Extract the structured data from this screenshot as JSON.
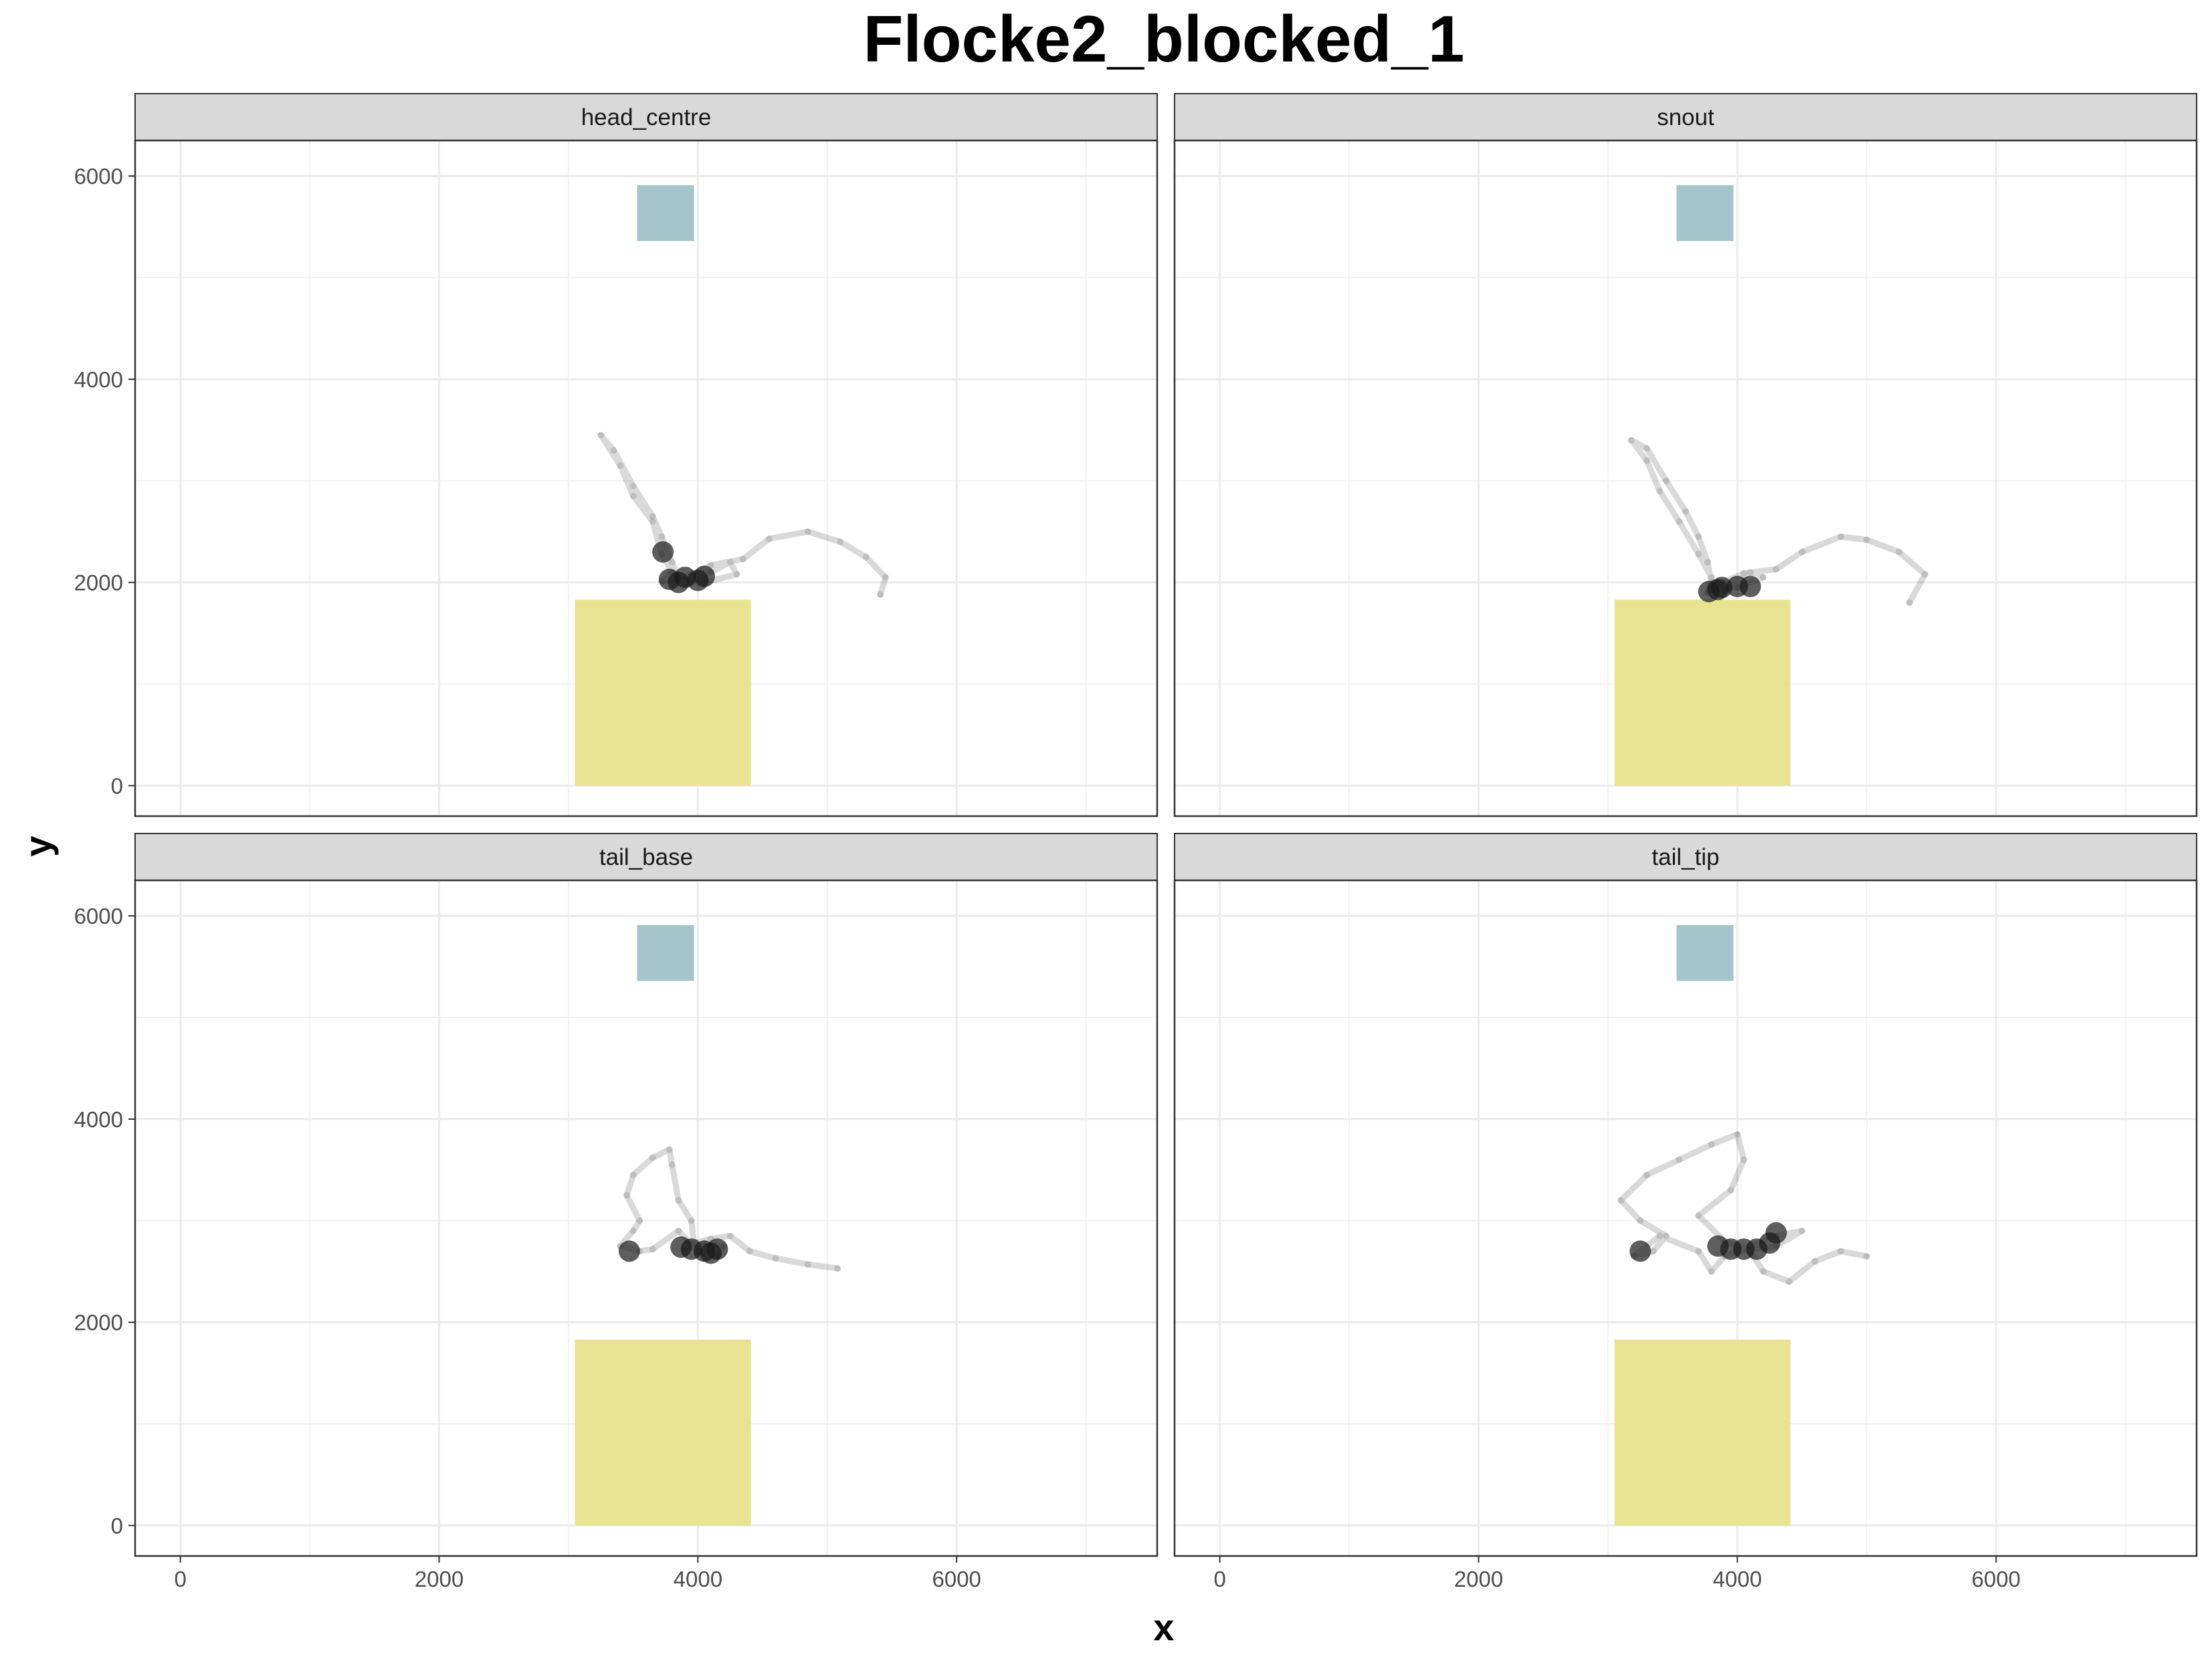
{
  "chart_data": {
    "type": "scatter",
    "title": "Flocke2_blocked_1",
    "xlabel": "x",
    "ylabel": "y",
    "xlim": [
      -350,
      7550
    ],
    "ylim": [
      -300,
      6350
    ],
    "x_ticks": [
      0,
      2000,
      4000,
      6000
    ],
    "y_ticks": [
      0,
      2000,
      4000,
      6000
    ],
    "grid": true,
    "layout": "2x2 facets",
    "regions": [
      {
        "name": "box_blue",
        "color": "#a6c4cc",
        "x": [
          3530,
          3970
        ],
        "y": [
          5360,
          5910
        ]
      },
      {
        "name": "box_yellow",
        "color": "#e8e291",
        "x": [
          3050,
          4410
        ],
        "y": [
          0,
          1830
        ]
      }
    ],
    "panels": [
      {
        "label": "head_centre",
        "track": [
          [
            5410,
            1880
          ],
          [
            5450,
            2050
          ],
          [
            5300,
            2250
          ],
          [
            5100,
            2400
          ],
          [
            4850,
            2500
          ],
          [
            4550,
            2430
          ],
          [
            4350,
            2230
          ],
          [
            4100,
            2170
          ],
          [
            3900,
            2050
          ],
          [
            3720,
            2010
          ],
          [
            3800,
            2100
          ],
          [
            3720,
            2280
          ],
          [
            3650,
            2600
          ],
          [
            3500,
            2850
          ],
          [
            3400,
            3150
          ],
          [
            3250,
            3450
          ],
          [
            3350,
            3300
          ],
          [
            3500,
            2950
          ],
          [
            3650,
            2650
          ],
          [
            3720,
            2450
          ],
          [
            3800,
            2200
          ],
          [
            3850,
            2050
          ],
          [
            4050,
            2000
          ],
          [
            4300,
            2080
          ],
          [
            4250,
            2200
          ],
          [
            4100,
            2100
          ],
          [
            3950,
            2000
          ]
        ],
        "clusters": [
          [
            3780,
            2030
          ],
          [
            3900,
            2050
          ],
          [
            4000,
            2020
          ],
          [
            3850,
            2000
          ],
          [
            4050,
            2060
          ],
          [
            3730,
            2300
          ]
        ]
      },
      {
        "label": "snout",
        "track": [
          [
            5330,
            1800
          ],
          [
            5450,
            2080
          ],
          [
            5250,
            2300
          ],
          [
            5000,
            2420
          ],
          [
            4800,
            2450
          ],
          [
            4500,
            2300
          ],
          [
            4300,
            2130
          ],
          [
            4050,
            2090
          ],
          [
            3850,
            1980
          ],
          [
            3770,
            1900
          ],
          [
            3800,
            2050
          ],
          [
            3700,
            2280
          ],
          [
            3550,
            2600
          ],
          [
            3400,
            2900
          ],
          [
            3300,
            3200
          ],
          [
            3180,
            3400
          ],
          [
            3300,
            3320
          ],
          [
            3450,
            3000
          ],
          [
            3600,
            2700
          ],
          [
            3700,
            2450
          ],
          [
            3770,
            2200
          ],
          [
            3800,
            2000
          ],
          [
            4000,
            1950
          ],
          [
            4200,
            2050
          ],
          [
            4100,
            2100
          ],
          [
            3900,
            1920
          ]
        ],
        "clusters": [
          [
            3780,
            1910
          ],
          [
            3880,
            1950
          ],
          [
            4000,
            1960
          ],
          [
            3850,
            1930
          ],
          [
            4100,
            1960
          ]
        ]
      },
      {
        "label": "tail_base",
        "track": [
          [
            5080,
            2530
          ],
          [
            4850,
            2570
          ],
          [
            4600,
            2630
          ],
          [
            4400,
            2700
          ],
          [
            4250,
            2850
          ],
          [
            4100,
            2820
          ],
          [
            3970,
            2780
          ],
          [
            3950,
            3000
          ],
          [
            3850,
            3200
          ],
          [
            3800,
            3550
          ],
          [
            3780,
            3700
          ],
          [
            3650,
            3620
          ],
          [
            3500,
            3450
          ],
          [
            3450,
            3250
          ],
          [
            3550,
            3000
          ],
          [
            3500,
            2900
          ],
          [
            3400,
            2750
          ],
          [
            3550,
            2700
          ],
          [
            3650,
            2720
          ],
          [
            3850,
            2900
          ],
          [
            4000,
            2700
          ],
          [
            4150,
            2650
          ],
          [
            4200,
            2750
          ],
          [
            4050,
            2780
          ],
          [
            3900,
            2720
          ]
        ],
        "clusters": [
          [
            3950,
            2720
          ],
          [
            4050,
            2700
          ],
          [
            4150,
            2720
          ],
          [
            3870,
            2740
          ],
          [
            4100,
            2680
          ],
          [
            3470,
            2700
          ]
        ]
      },
      {
        "label": "tail_tip",
        "track": [
          [
            5000,
            2650
          ],
          [
            4800,
            2700
          ],
          [
            4600,
            2600
          ],
          [
            4400,
            2400
          ],
          [
            4200,
            2500
          ],
          [
            4100,
            2700
          ],
          [
            3900,
            2800
          ],
          [
            3700,
            3050
          ],
          [
            3950,
            3300
          ],
          [
            4050,
            3600
          ],
          [
            4000,
            3850
          ],
          [
            3800,
            3750
          ],
          [
            3550,
            3600
          ],
          [
            3300,
            3450
          ],
          [
            3100,
            3200
          ],
          [
            3250,
            3000
          ],
          [
            3450,
            2850
          ],
          [
            3350,
            2700
          ],
          [
            3200,
            2650
          ],
          [
            3400,
            2850
          ],
          [
            3700,
            2700
          ],
          [
            3800,
            2500
          ],
          [
            3900,
            2650
          ],
          [
            4100,
            2750
          ],
          [
            4300,
            2850
          ],
          [
            4500,
            2900
          ],
          [
            4300,
            2750
          ],
          [
            4000,
            2700
          ]
        ],
        "clusters": [
          [
            3950,
            2720
          ],
          [
            4050,
            2720
          ],
          [
            4150,
            2720
          ],
          [
            4250,
            2780
          ],
          [
            3850,
            2750
          ],
          [
            4300,
            2880
          ],
          [
            3250,
            2700
          ]
        ]
      }
    ]
  }
}
